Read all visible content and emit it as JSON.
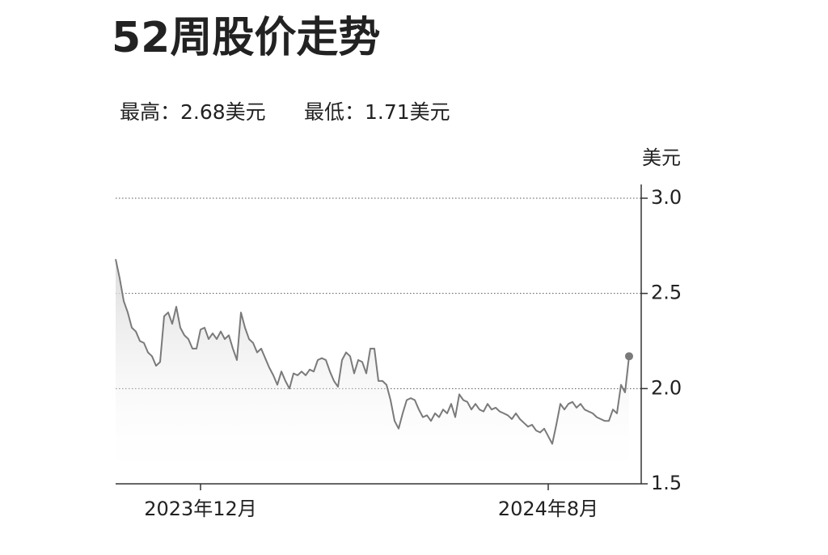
{
  "chart_data": {
    "type": "line",
    "title": "52周股价走势",
    "annotations": [
      "最高：2.68美元",
      "最低：1.71美元"
    ],
    "y_axis_label": "美元",
    "categories": [
      null,
      null,
      null,
      null,
      null,
      null,
      null,
      null,
      null,
      null,
      null,
      null,
      null,
      null,
      null,
      null,
      null,
      null,
      null,
      null,
      null,
      "2023年12月",
      null,
      null,
      null,
      null,
      null,
      null,
      null,
      null,
      null,
      null,
      null,
      null,
      null,
      null,
      null,
      null,
      null,
      null,
      null,
      null,
      null,
      null,
      null,
      null,
      null,
      null,
      null,
      null,
      null,
      null,
      null,
      null,
      null,
      null,
      null,
      null,
      null,
      null,
      null,
      null,
      null,
      null,
      null,
      null,
      null,
      null,
      null,
      null,
      null,
      null,
      null,
      null,
      null,
      null,
      null,
      null,
      null,
      null,
      null,
      null,
      null,
      null,
      null,
      null,
      null,
      null,
      null,
      null,
      null,
      null,
      null,
      null,
      null,
      null,
      null,
      null,
      null,
      null,
      null,
      null,
      null,
      null,
      null,
      null,
      null,
      "2024年8月",
      null,
      null,
      null,
      null,
      null,
      null,
      null,
      null,
      null,
      null,
      null,
      null,
      null,
      null,
      null,
      null,
      null,
      null,
      null,
      null
    ],
    "values": [
      2.68,
      2.58,
      2.46,
      2.4,
      2.32,
      2.3,
      2.25,
      2.24,
      2.19,
      2.17,
      2.12,
      2.14,
      2.38,
      2.4,
      2.34,
      2.43,
      2.32,
      2.28,
      2.26,
      2.21,
      2.21,
      2.31,
      2.32,
      2.26,
      2.29,
      2.26,
      2.3,
      2.26,
      2.28,
      2.21,
      2.15,
      2.4,
      2.32,
      2.26,
      2.24,
      2.19,
      2.21,
      2.16,
      2.11,
      2.07,
      2.02,
      2.09,
      2.04,
      2.0,
      2.08,
      2.07,
      2.09,
      2.07,
      2.1,
      2.09,
      2.15,
      2.16,
      2.15,
      2.09,
      2.04,
      2.01,
      2.15,
      2.19,
      2.17,
      2.08,
      2.15,
      2.14,
      2.08,
      2.21,
      2.21,
      2.04,
      2.04,
      2.02,
      1.94,
      1.83,
      1.79,
      1.87,
      1.94,
      1.95,
      1.94,
      1.89,
      1.85,
      1.86,
      1.83,
      1.87,
      1.85,
      1.89,
      1.87,
      1.92,
      1.85,
      1.97,
      1.94,
      1.93,
      1.89,
      1.92,
      1.89,
      1.88,
      1.92,
      1.89,
      1.9,
      1.88,
      1.87,
      1.86,
      1.84,
      1.87,
      1.84,
      1.82,
      1.8,
      1.81,
      1.78,
      1.77,
      1.79,
      1.75,
      1.71,
      1.81,
      1.92,
      1.89,
      1.92,
      1.93,
      1.9,
      1.92,
      1.89,
      1.88,
      1.87,
      1.85,
      1.84,
      1.83,
      1.83,
      1.89,
      1.87,
      2.02,
      1.98,
      2.17
    ],
    "color": "#7a7a7a",
    "ylim": [
      1.5,
      3.0
    ],
    "yticks": [
      1.5,
      {
        "value": 2,
        "label": "2.0"
      },
      2.5,
      {
        "value": 3,
        "label": "3.0"
      }
    ],
    "grid": true
  }
}
